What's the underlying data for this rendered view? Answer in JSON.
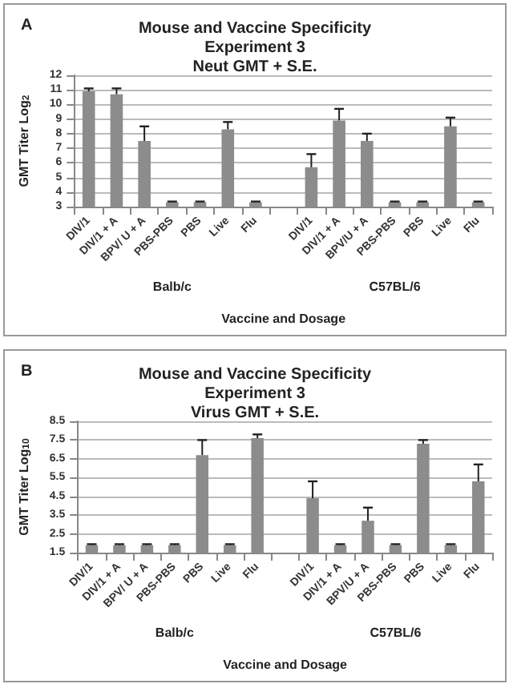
{
  "chart_data": [
    {
      "type": "bar",
      "title": "Mouse and Vaccine Specificity\nExperiment 3\nNeut GMT + S.E.",
      "xlabel": "Vaccine and Dosage",
      "ylabel": "GMT Titer Log$_{2}$",
      "categories": [
        "DIV/1",
        "DIV/1 + A",
        "BPV/ U + A",
        "PBS-PBS",
        "PBS",
        "Live",
        "Flu",
        null,
        "DIV/1",
        "DIV/1 + A",
        "BPV/U + A",
        "PBS-PBS",
        "PBS",
        "Live",
        "Flu"
      ],
      "values": [
        10.9,
        10.7,
        7.5,
        3.3,
        3.3,
        8.3,
        3.3,
        null,
        5.7,
        8.9,
        7.5,
        3.3,
        3.3,
        8.5,
        3.3
      ],
      "errors": [
        [
          10.9,
          11.1
        ],
        [
          10.7,
          11.1
        ],
        [
          7.5,
          8.5
        ],
        [
          3.3,
          3.35
        ],
        [
          3.3,
          3.35
        ],
        [
          8.3,
          8.8
        ],
        [
          3.3,
          3.35
        ],
        null,
        [
          5.7,
          6.6
        ],
        [
          8.9,
          9.7
        ],
        [
          7.5,
          8.0
        ],
        [
          3.3,
          3.35
        ],
        [
          3.3,
          3.35
        ],
        [
          8.5,
          9.1
        ],
        [
          3.3,
          3.35
        ]
      ],
      "color": "#8c8c8c",
      "ylim": [
        3,
        12
      ],
      "yticks": [
        3,
        4,
        5,
        6,
        7,
        8,
        9,
        10,
        11,
        12
      ],
      "grid": "y",
      "annotations": [
        "A",
        "Balb/c",
        "C57BL/6"
      ]
    },
    {
      "type": "bar",
      "title": "Mouse and Vaccine Specificity\nExperiment 3\nVirus GMT + S.E.",
      "xlabel": "Vaccine and Dosage",
      "ylabel": "GMT Titer Log$_{10}$",
      "categories": [
        "DIV/1",
        "DIV/1 + A",
        "BPV/ U + A",
        "PBS-PBS",
        "PBS",
        "Live",
        "Flu",
        null,
        "DIV/1",
        "DIV/1 + A",
        "BPV/U + A",
        "PBS-PBS",
        "PBS",
        "Live",
        "Flu"
      ],
      "values": [
        1.9,
        1.9,
        1.9,
        1.9,
        6.7,
        1.9,
        7.6,
        null,
        4.4,
        1.9,
        3.2,
        1.9,
        7.3,
        1.9,
        5.3
      ],
      "errors": [
        [
          1.9,
          1.95
        ],
        [
          1.9,
          1.95
        ],
        [
          1.9,
          1.95
        ],
        [
          1.9,
          1.95
        ],
        [
          6.7,
          7.5
        ],
        [
          1.9,
          1.95
        ],
        [
          7.6,
          7.8
        ],
        null,
        [
          4.4,
          5.3
        ],
        [
          1.9,
          1.95
        ],
        [
          3.2,
          3.9
        ],
        [
          1.9,
          1.95
        ],
        [
          7.3,
          7.5
        ],
        [
          1.9,
          1.95
        ],
        [
          5.3,
          6.2
        ]
      ],
      "color": "#8c8c8c",
      "ylim": [
        1.5,
        8.5
      ],
      "yticks": [
        1.5,
        2.5,
        3.5,
        4.5,
        5.5,
        6.5,
        7.5,
        8.5
      ],
      "grid": "y",
      "annotations": [
        "B",
        "Balb/c",
        "C57BL/6"
      ]
    }
  ]
}
